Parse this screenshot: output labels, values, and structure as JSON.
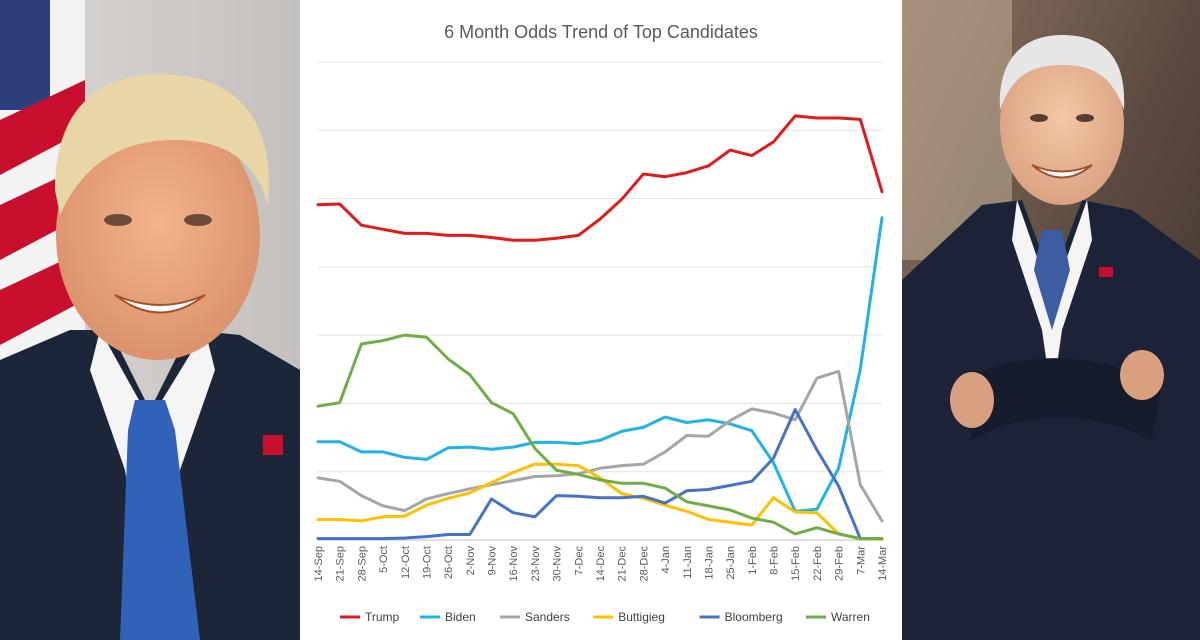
{
  "chart_data": {
    "type": "line",
    "title": "6 Month Odds Trend of Top Candidates",
    "xlabel": "",
    "ylabel": "",
    "ylim": [
      0,
      70
    ],
    "grid": true,
    "legend_position": "bottom",
    "categories": [
      "14-Sep",
      "21-Sep",
      "28-Sep",
      "5-Oct",
      "12-Oct",
      "19-Oct",
      "26-Oct",
      "2-Nov",
      "9-Nov",
      "16-Nov",
      "23-Nov",
      "30-Nov",
      "7-Dec",
      "14-Dec",
      "21-Dec",
      "28-Dec",
      "4-Jan",
      "11-Jan",
      "18-Jan",
      "25-Jan",
      "1-Feb",
      "8-Feb",
      "15-Feb",
      "22-Feb",
      "29-Feb",
      "7-Mar",
      "14-Mar"
    ],
    "series": [
      {
        "name": "Trump",
        "color": "#e31a1c",
        "values": [
          49.1,
          49.2,
          46.1,
          45.5,
          44.9,
          44.9,
          44.6,
          44.6,
          44.3,
          43.9,
          43.9,
          44.2,
          44.6,
          47.0,
          49.9,
          53.6,
          53.2,
          53.8,
          54.8,
          57.1,
          56.3,
          58.3,
          62.1,
          61.8,
          61.8,
          61.6,
          51.0
        ]
      },
      {
        "name": "Biden",
        "color": "#1fb3e6",
        "values": [
          14.4,
          14.4,
          12.9,
          12.9,
          12.1,
          11.8,
          13.5,
          13.6,
          13.3,
          13.6,
          14.3,
          14.3,
          14.1,
          14.6,
          15.9,
          16.5,
          18.0,
          17.2,
          17.6,
          17.0,
          16.0,
          11.3,
          4.2,
          4.5,
          10.5,
          25.0,
          47.2
        ]
      },
      {
        "name": "Sanders",
        "color": "#a6a6a6",
        "values": [
          9.1,
          8.6,
          6.5,
          5.0,
          4.3,
          6.0,
          6.8,
          7.5,
          8.1,
          8.7,
          9.3,
          9.4,
          9.7,
          10.5,
          10.9,
          11.1,
          12.9,
          15.3,
          15.2,
          17.5,
          19.2,
          18.6,
          17.6,
          23.7,
          24.7,
          8.1,
          2.8
        ]
      },
      {
        "name": "Buttigieg",
        "color": "#ffc000",
        "values": [
          3.0,
          3.0,
          2.8,
          3.4,
          3.5,
          5.1,
          6.1,
          6.9,
          8.4,
          9.9,
          11.1,
          11.1,
          10.9,
          9.1,
          6.8,
          6.1,
          5.1,
          4.2,
          3.0,
          2.6,
          2.2,
          6.2,
          4.1,
          4.0,
          0.9,
          0.2,
          0.1
        ]
      },
      {
        "name": "Bloomberg",
        "color": "#4472c4",
        "values": [
          0.2,
          0.2,
          0.2,
          0.2,
          0.3,
          0.5,
          0.8,
          0.8,
          6.0,
          4.0,
          3.4,
          6.5,
          6.4,
          6.2,
          6.2,
          6.4,
          5.4,
          7.2,
          7.4,
          8.0,
          8.6,
          12.0,
          19.1,
          13.2,
          7.9,
          0.2,
          0.2
        ]
      },
      {
        "name": "Warren",
        "color": "#70ad47",
        "values": [
          19.6,
          20.1,
          28.7,
          29.2,
          30.0,
          29.7,
          26.5,
          24.2,
          20.1,
          18.5,
          13.4,
          10.2,
          9.6,
          8.8,
          8.3,
          8.3,
          7.6,
          5.6,
          5.0,
          4.4,
          3.2,
          2.6,
          0.9,
          1.8,
          0.9,
          0.2,
          0.2
        ]
      }
    ]
  },
  "photos": {
    "left_subject": "man-in-dark-suit-blue-tie-portrait",
    "right_subject": "man-in-dark-suit-arms-crossed-portrait",
    "flag_colors": {
      "red": "#c8102e",
      "white": "#f3f3f3",
      "blue": "#2d3f7b"
    },
    "suit_color": "#1d2538",
    "tie_left": "#2f62b8",
    "tie_right": "#3d5da3"
  }
}
